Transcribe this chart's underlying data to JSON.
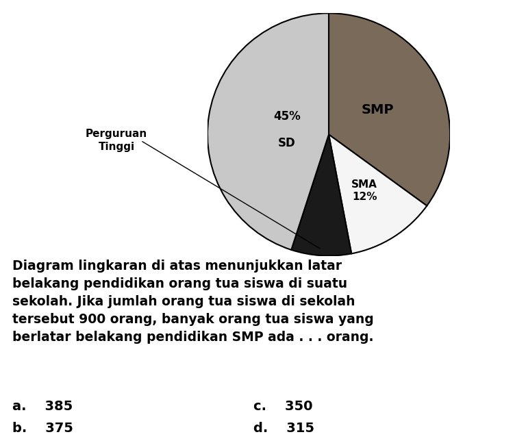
{
  "slices": [
    {
      "label": "SMP",
      "pct": 35,
      "color": "#7a6a5a"
    },
    {
      "label": "SMA\n12%",
      "pct": 12,
      "color": "#f5f5f5"
    },
    {
      "label": "Perguruan\nTinggi",
      "pct": 8,
      "color": "#1a1a1a"
    },
    {
      "label": "45%\nSD",
      "pct": 45,
      "color": "#c8c8c8"
    }
  ],
  "paragraph_lines": [
    "Diagram lingkaran di atas menunjukkan latar",
    "belakang pendidikan orang tua siswa di suatu",
    "sekolah. Jika jumlah orang tua siswa di sekolah",
    "tersebut 900 orang, banyak orang tua siswa yang",
    "berlatar belakang pendidikan SMP ada . . . orang."
  ],
  "choices": [
    {
      "letter": "a.",
      "value": "385",
      "col": 0
    },
    {
      "letter": "c.",
      "value": "350",
      "col": 1
    },
    {
      "letter": "b.",
      "value": "375",
      "col": 0
    },
    {
      "letter": "d.",
      "value": "315",
      "col": 1
    }
  ],
  "bg_color": "#ffffff"
}
